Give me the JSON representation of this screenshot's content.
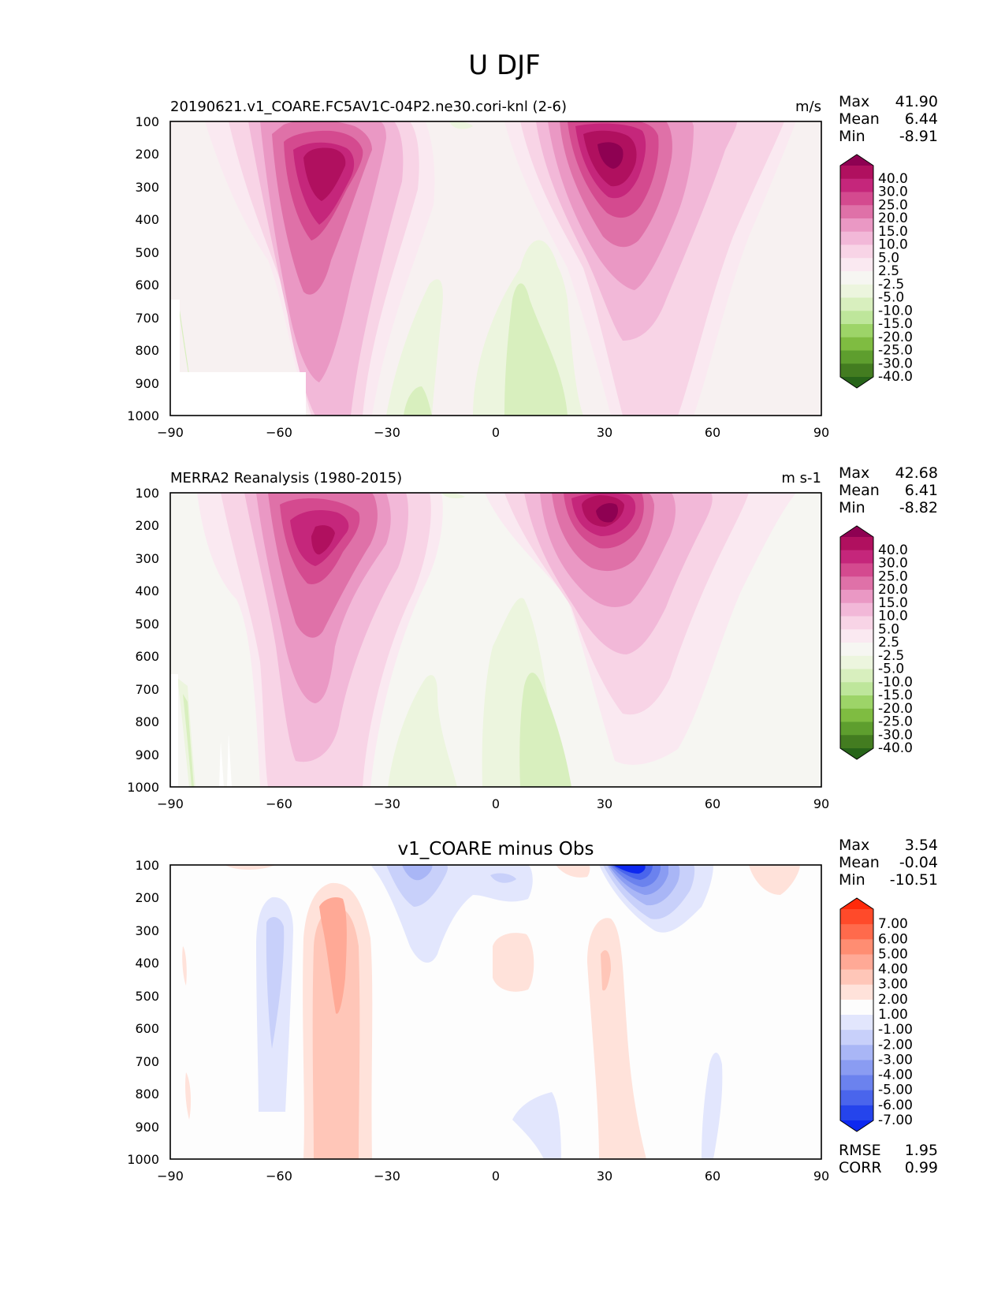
{
  "figure_title": "U DJF",
  "panels": [
    {
      "id": "test",
      "title_left": "20190621.v1_COARE.FC5AV1C-04P2.ne30.cori-knl (2-6)",
      "title_center": "",
      "units": "m/s",
      "stats": [
        {
          "label": "Max",
          "value": "41.90"
        },
        {
          "label": "Mean",
          "value": "6.44"
        },
        {
          "label": "Min",
          "value": "-8.91"
        }
      ],
      "footer_stats": [],
      "colorbar": {
        "labels": [
          "40.0",
          "30.0",
          "25.0",
          "20.0",
          "15.0",
          "10.0",
          "5.0",
          "2.5",
          "-2.5",
          "-5.0",
          "-10.0",
          "-15.0",
          "-20.0",
          "-25.0",
          "-30.0",
          "-40.0"
        ],
        "colors": [
          "#8e0152",
          "#b0105f",
          "#c5267b",
          "#d44a8f",
          "#df71a8",
          "#ea98c4",
          "#f2b8d8",
          "#f8d4e6",
          "#fae9f1",
          "#f6f6f2",
          "#ecf5de",
          "#d8efbe",
          "#bee69b",
          "#9dd468",
          "#7fbc41",
          "#5e9e2e",
          "#437c20",
          "#276419"
        ]
      }
    },
    {
      "id": "reference",
      "title_left": "MERRA2 Reanalysis (1980-2015)",
      "title_center": "",
      "units": "m s-1",
      "stats": [
        {
          "label": "Max",
          "value": "42.68"
        },
        {
          "label": "Mean",
          "value": "6.41"
        },
        {
          "label": "Min",
          "value": "-8.82"
        }
      ],
      "footer_stats": [],
      "colorbar": {
        "labels": [
          "40.0",
          "30.0",
          "25.0",
          "20.0",
          "15.0",
          "10.0",
          "5.0",
          "2.5",
          "-2.5",
          "-5.0",
          "-10.0",
          "-15.0",
          "-20.0",
          "-25.0",
          "-30.0",
          "-40.0"
        ],
        "colors": [
          "#8e0152",
          "#b0105f",
          "#c5267b",
          "#d44a8f",
          "#df71a8",
          "#ea98c4",
          "#f2b8d8",
          "#f8d4e6",
          "#fae9f1",
          "#f6f6f2",
          "#ecf5de",
          "#d8efbe",
          "#bee69b",
          "#9dd468",
          "#7fbc41",
          "#5e9e2e",
          "#437c20",
          "#276419"
        ]
      }
    },
    {
      "id": "diff",
      "title_left": "",
      "title_center": "v1_COARE minus Obs",
      "units": "",
      "stats": [
        {
          "label": "Max",
          "value": "3.54"
        },
        {
          "label": "Mean",
          "value": "-0.04"
        },
        {
          "label": "Min",
          "value": "-10.51"
        }
      ],
      "footer_stats": [
        {
          "label": "RMSE",
          "value": "1.95"
        },
        {
          "label": "CORR",
          "value": "0.99"
        }
      ],
      "colorbar": {
        "labels": [
          "7.00",
          "6.00",
          "5.00",
          "4.00",
          "3.00",
          "2.00",
          "1.00",
          "-1.00",
          "-2.00",
          "-3.00",
          "-4.00",
          "-5.00",
          "-6.00",
          "-7.00"
        ],
        "colors": [
          "#ff2a0a",
          "#ff4a2a",
          "#ff6a4c",
          "#ff8d72",
          "#ffa996",
          "#ffc6b8",
          "#ffe2da",
          "#fdfdfd",
          "#e2e6fd",
          "#c8d0fa",
          "#a9b6f6",
          "#8a9cf2",
          "#6b82ee",
          "#4a65ec",
          "#2544ec",
          "#0d28f0"
        ]
      }
    }
  ],
  "chart_data": [
    {
      "type": "heatmap",
      "title": "20190621.v1_COARE.FC5AV1C-04P2.ne30.cori-knl (2-6)",
      "units": "m/s",
      "xlabel": "",
      "ylabel": "",
      "xlim": [
        -90,
        90
      ],
      "ylim": [
        1000,
        100
      ],
      "x_ticks": [
        -90,
        -60,
        -30,
        0,
        30,
        60,
        90
      ],
      "y_ticks": [
        100,
        200,
        300,
        400,
        500,
        600,
        700,
        800,
        900,
        1000
      ],
      "x_tick_labels": [
        "−90",
        "−60",
        "−30",
        "0",
        "30",
        "60",
        "90"
      ],
      "y_tick_labels": [
        "100",
        "200",
        "300",
        "400",
        "500",
        "600",
        "700",
        "800",
        "900",
        "1000"
      ],
      "max": 41.9,
      "mean": 6.44,
      "min": -8.91,
      "features": [
        {
          "name": "SH jet",
          "lat": -48,
          "p": 250,
          "peak": 37.5,
          "lat_width": 11,
          "p_low": 700,
          "p_high": 120
        },
        {
          "name": "NH jet",
          "lat": 30,
          "p": 200,
          "peak": 41.9,
          "lat_width": 13,
          "p_low": 900,
          "p_high": 140
        },
        {
          "name": "Tropical easterlies",
          "lat": 5,
          "p": 800,
          "peak": -8.9,
          "lat_width": 10,
          "p_low": 1000,
          "p_high": 500
        }
      ]
    },
    {
      "type": "heatmap",
      "title": "MERRA2 Reanalysis (1980-2015)",
      "units": "m s-1",
      "xlabel": "",
      "ylabel": "",
      "xlim": [
        -90,
        90
      ],
      "ylim": [
        1000,
        100
      ],
      "x_ticks": [
        -90,
        -60,
        -30,
        0,
        30,
        60,
        90
      ],
      "y_ticks": [
        100,
        200,
        300,
        400,
        500,
        600,
        700,
        800,
        900,
        1000
      ],
      "x_tick_labels": [
        "−90",
        "−60",
        "−30",
        "0",
        "30",
        "60",
        "90"
      ],
      "y_tick_labels": [
        "100",
        "200",
        "300",
        "400",
        "500",
        "600",
        "700",
        "800",
        "900",
        "1000"
      ],
      "max": 42.68,
      "mean": 6.41,
      "min": -8.82,
      "features": [
        {
          "name": "SH jet",
          "lat": -47,
          "p": 220,
          "peak": 34,
          "lat_width": 12,
          "p_low": 900,
          "p_high": 120
        },
        {
          "name": "NH jet",
          "lat": 31,
          "p": 200,
          "peak": 42.7,
          "lat_width": 13,
          "p_low": 920,
          "p_high": 120
        },
        {
          "name": "Tropical easterlies",
          "lat": 5,
          "p": 780,
          "peak": -8.8,
          "lat_width": 10,
          "p_low": 1000,
          "p_high": 500
        }
      ]
    },
    {
      "type": "heatmap",
      "title": "v1_COARE minus Obs",
      "units": "",
      "xlabel": "",
      "ylabel": "",
      "xlim": [
        -90,
        90
      ],
      "ylim": [
        1000,
        100
      ],
      "x_ticks": [
        -90,
        -60,
        -30,
        0,
        30,
        60,
        90
      ],
      "y_ticks": [
        100,
        200,
        300,
        400,
        500,
        600,
        700,
        800,
        900,
        1000
      ],
      "x_tick_labels": [
        "−90",
        "−60",
        "−30",
        "0",
        "30",
        "60",
        "90"
      ],
      "y_tick_labels": [
        "100",
        "200",
        "300",
        "400",
        "500",
        "600",
        "700",
        "800",
        "900",
        "1000"
      ],
      "max": 3.54,
      "mean": -0.04,
      "min": -10.51,
      "rmse": 1.95,
      "corr": 0.99,
      "features": [
        {
          "name": "NH jet-top negative",
          "lat": 38,
          "p": 130,
          "peak": -10.5
        },
        {
          "name": "SH positive column",
          "lat": -44,
          "p": 400,
          "peak": 3.5
        },
        {
          "name": "SH negative column",
          "lat": -62,
          "p": 400,
          "peak": -2.5
        }
      ]
    }
  ]
}
